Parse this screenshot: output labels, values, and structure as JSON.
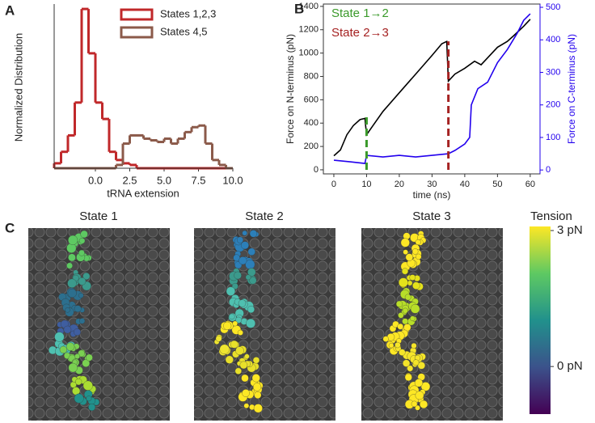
{
  "chart_data": [
    {
      "type": "histogram",
      "panel": "A",
      "xlabel": "tRNA extension",
      "ylabel": "Normalized Distribution",
      "bins": [
        -3,
        -2.5,
        -2,
        -1.5,
        -1,
        -0.5,
        0,
        0.5,
        1,
        1.5,
        2,
        2.5,
        3,
        3.5,
        4,
        4.5,
        5,
        5.5,
        6,
        6.5,
        7,
        7.5,
        8,
        8.5,
        9,
        9.5,
        10
      ],
      "series": [
        {
          "name": "States 1,2,3",
          "color": "#c0282a",
          "values": [
            0.03,
            0.1,
            0.2,
            0.4,
            0.97,
            0.7,
            0.4,
            0.3,
            0.1,
            0.05,
            0.03,
            0.02,
            0,
            0,
            0,
            0,
            0,
            0,
            0,
            0,
            0,
            0,
            0,
            0,
            0,
            0
          ]
        },
        {
          "name": "States 4,5",
          "color": "#8b5a4a",
          "values": [
            0,
            0,
            0,
            0,
            0,
            0,
            0,
            0,
            0,
            0.02,
            0.15,
            0.2,
            0.2,
            0.18,
            0.17,
            0.16,
            0.18,
            0.15,
            0.18,
            0.22,
            0.25,
            0.26,
            0.15,
            0.05,
            0.02,
            0
          ]
        }
      ],
      "xlim": [
        -3,
        10
      ],
      "ylim": [
        0,
        1
      ],
      "xticks": [
        {
          "value": 0,
          "label": "0.0"
        },
        {
          "value": 2.5,
          "label": "2.5"
        },
        {
          "value": 5,
          "label": "5.0"
        },
        {
          "value": 7.5,
          "label": "7.5"
        },
        {
          "value": 10,
          "label": "10.0"
        }
      ],
      "legend": "upper right"
    },
    {
      "type": "line",
      "panel": "B",
      "xlabel": "time (ns)",
      "ylabel": "Force on N-terminus (pN)",
      "y2label": "Force on C-terminus (pN)",
      "y2color": "#2200ee",
      "series": [
        {
          "color": "#000000",
          "x": [
            0,
            2,
            4,
            6,
            8,
            9.5,
            10,
            12,
            15,
            20,
            25,
            30,
            33,
            34.5,
            35,
            37,
            40,
            43,
            45,
            47,
            50,
            53,
            55,
            58,
            60
          ],
          "values": [
            120,
            170,
            300,
            380,
            430,
            440,
            300,
            380,
            500,
            660,
            820,
            980,
            1080,
            1100,
            760,
            820,
            870,
            930,
            900,
            960,
            1050,
            1100,
            1150,
            1230,
            1290
          ]
        },
        {
          "color": "#2200ee",
          "axis": "y2",
          "x": [
            0,
            5,
            9.5,
            10,
            15,
            20,
            25,
            30,
            35,
            37,
            40,
            41.5,
            42,
            44,
            47,
            50,
            53,
            56,
            58,
            60
          ],
          "values": [
            30,
            25,
            20,
            45,
            40,
            45,
            40,
            45,
            50,
            60,
            80,
            100,
            200,
            250,
            270,
            330,
            370,
            420,
            460,
            480
          ]
        }
      ],
      "annotations": [
        {
          "text": "State 1→2",
          "x": 10,
          "y": 450,
          "color": "#3a9a2a"
        },
        {
          "text": "State 2→3",
          "x": 35,
          "y": 1100,
          "color": "#a52222"
        }
      ],
      "xlim": [
        -3.2,
        63
      ],
      "ylim": [
        -35,
        1420
      ],
      "y2lim": [
        -12,
        510
      ],
      "xticks": [
        0,
        10,
        20,
        30,
        40,
        50,
        60
      ],
      "yticks": [
        0,
        200,
        400,
        600,
        800,
        1000,
        1200,
        1400
      ],
      "y2ticks": [
        0,
        100,
        200,
        300,
        400,
        500
      ]
    },
    {
      "type": "colorbar",
      "panel": "C",
      "title": "Tension",
      "images": [
        "State 1",
        "State 2",
        "State 3"
      ],
      "colormap": "viridis",
      "clim": [
        -1.05,
        3.09
      ],
      "cticks": [
        {
          "value": 3,
          "label": "3 pN"
        },
        {
          "value": 0,
          "label": "0 pN"
        }
      ]
    }
  ]
}
